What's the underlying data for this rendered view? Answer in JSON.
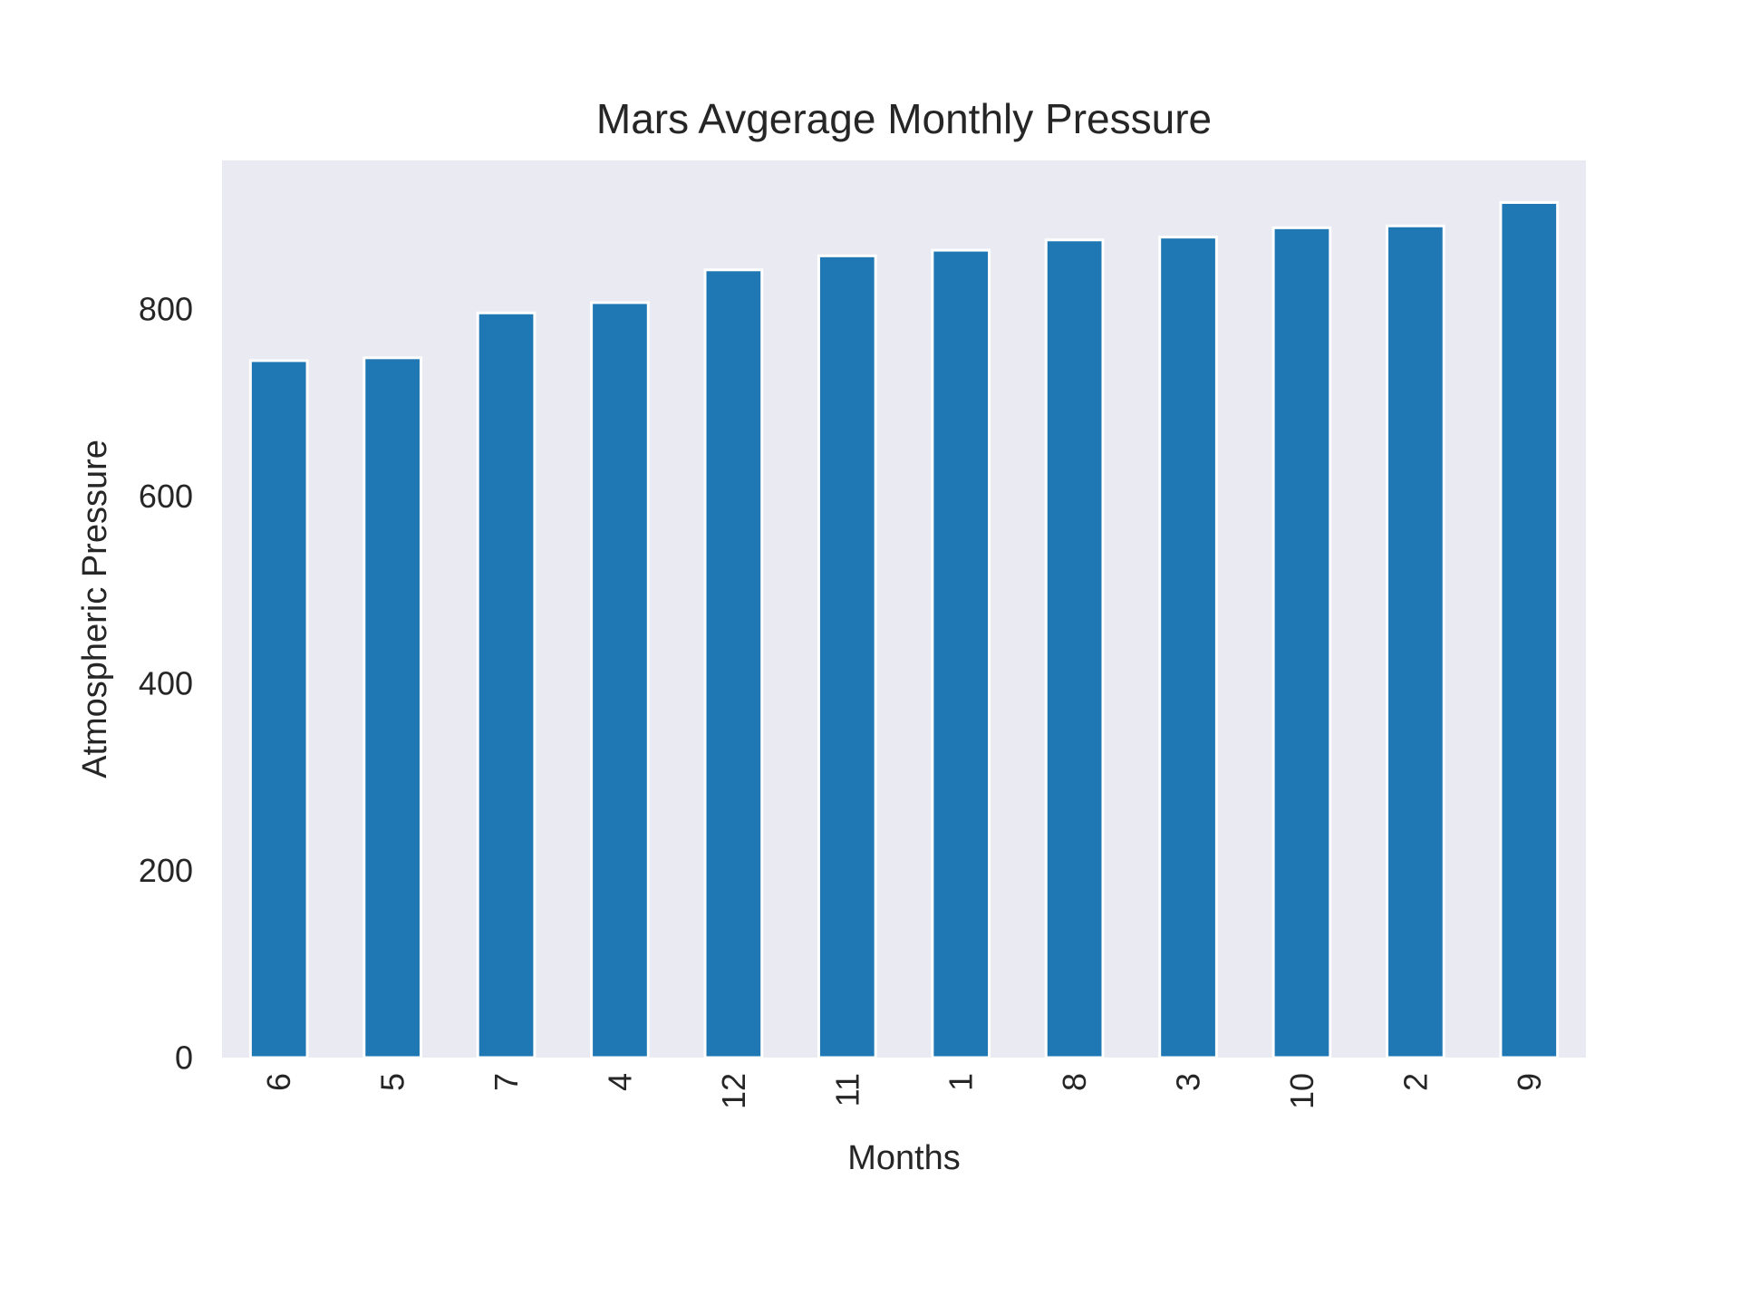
{
  "chart_data": {
    "type": "bar",
    "title": "Mars Avgerage Monthly Pressure",
    "xlabel": "Months",
    "ylabel": "Atmospheric Pressure",
    "categories": [
      "6",
      "5",
      "7",
      "4",
      "12",
      "11",
      "1",
      "8",
      "3",
      "10",
      "2",
      "9"
    ],
    "values": [
      745,
      748,
      796,
      807,
      842,
      857,
      863,
      874,
      877,
      887,
      889,
      914
    ],
    "ylim": [
      0,
      959
    ],
    "yticks": [
      0,
      200,
      400,
      600,
      800
    ],
    "grid": false,
    "legend": "none",
    "colors": {
      "bar": "#1f77b4",
      "bar_edge": "#ffffff",
      "plot_background": "#eaeaf2",
      "text": "#262626"
    }
  }
}
